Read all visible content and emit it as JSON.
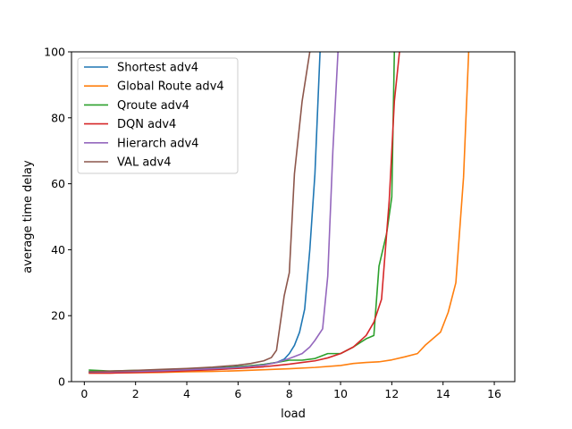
{
  "chart_data": {
    "type": "line",
    "title": "",
    "xlabel": "load",
    "ylabel": "average time delay",
    "xlim": [
      -0.5,
      16.8
    ],
    "ylim": [
      0,
      100
    ],
    "xticks": [
      0,
      2,
      4,
      6,
      8,
      10,
      12,
      14,
      16
    ],
    "yticks": [
      0,
      20,
      40,
      60,
      80,
      100
    ],
    "grid": false,
    "legend": "top-left",
    "series": [
      {
        "name": "Shortest adv4",
        "color": "#1f77b4",
        "x": [
          0.2,
          0.8,
          1.5,
          2.5,
          3.5,
          4.5,
          5.5,
          6.5,
          7.0,
          7.5,
          7.8,
          8.0,
          8.2,
          8.4,
          8.6,
          8.8,
          9.0,
          9.2
        ],
        "y": [
          3.0,
          3.0,
          3.1,
          3.3,
          3.6,
          4.0,
          4.3,
          4.8,
          5.2,
          5.8,
          6.8,
          8.5,
          11.0,
          15.0,
          22.0,
          40.0,
          63.0,
          100.0
        ]
      },
      {
        "name": "Global Route adv4",
        "color": "#ff7f0e",
        "x": [
          0.2,
          1,
          2,
          3,
          4,
          5,
          6,
          7,
          8,
          9,
          10,
          10.5,
          11,
          11.5,
          12,
          12.5,
          13,
          13.3,
          13.6,
          13.9,
          14.2,
          14.5,
          14.8,
          15.0
        ],
        "y": [
          2.6,
          2.6,
          2.7,
          2.8,
          3.0,
          3.1,
          3.3,
          3.6,
          3.9,
          4.3,
          4.9,
          5.5,
          5.8,
          6.0,
          6.6,
          7.5,
          8.5,
          11.0,
          13.0,
          15.0,
          21.0,
          30.0,
          62.0,
          100.0
        ]
      },
      {
        "name": "Qroute adv4",
        "color": "#2ca02c",
        "x": [
          0.2,
          1,
          2,
          3,
          4,
          5,
          6,
          7,
          7.5,
          8,
          8.5,
          9,
          9.5,
          10,
          10.5,
          11,
          11.3,
          11.5,
          11.8,
          12.0,
          12.1
        ],
        "y": [
          3.5,
          3.2,
          3.4,
          3.5,
          3.7,
          4.0,
          4.5,
          5.2,
          5.8,
          6.5,
          6.5,
          7.0,
          8.5,
          8.5,
          10.5,
          13.0,
          14.0,
          35.0,
          45.0,
          56.0,
          100.0
        ]
      },
      {
        "name": "DQN adv4",
        "color": "#d62728",
        "x": [
          0.2,
          1,
          2,
          3,
          4,
          5,
          6,
          7,
          7.5,
          8,
          8.5,
          9,
          9.5,
          10,
          10.5,
          11,
          11.3,
          11.6,
          11.9,
          12.1,
          12.3
        ],
        "y": [
          2.6,
          2.6,
          2.8,
          3.0,
          3.3,
          3.6,
          4.0,
          4.5,
          4.9,
          5.3,
          5.8,
          6.3,
          7.2,
          8.5,
          10.5,
          14.0,
          18.0,
          25.0,
          55.0,
          85.0,
          100.0
        ]
      },
      {
        "name": "Hierarch adv4",
        "color": "#9467bd",
        "x": [
          0.2,
          1,
          2,
          3,
          4,
          5,
          6,
          7,
          7.5,
          8,
          8.5,
          8.8,
          9.0,
          9.3,
          9.5,
          9.7,
          9.9
        ],
        "y": [
          2.9,
          3.0,
          3.1,
          3.3,
          3.6,
          3.9,
          4.3,
          5.0,
          5.8,
          7.0,
          8.5,
          10.5,
          12.5,
          16.0,
          32.0,
          70.0,
          100.0
        ]
      },
      {
        "name": "VAL adv4",
        "color": "#8c564b",
        "x": [
          0.2,
          1,
          2,
          3,
          4,
          5,
          6,
          6.5,
          7.0,
          7.3,
          7.5,
          7.8,
          8.0,
          8.2,
          8.5,
          8.8
        ],
        "y": [
          3.0,
          3.2,
          3.4,
          3.7,
          4.0,
          4.4,
          5.0,
          5.5,
          6.3,
          7.3,
          9.5,
          26.0,
          33.0,
          63.0,
          85.0,
          100.0
        ]
      }
    ]
  }
}
